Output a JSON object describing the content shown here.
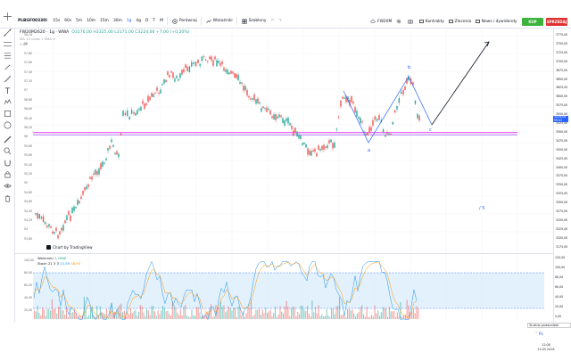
{
  "toolbar": {
    "symbol": "PLBGF00330I",
    "intervals": [
      "15s",
      "60s",
      "5m",
      "10m",
      "15m",
      "30m",
      "1g",
      "4g",
      "D",
      "T",
      "M"
    ],
    "active_interval": "1g",
    "compare_label": "Porównaj",
    "indicators_label": "Wskaźniki",
    "templates_label": "Szablony",
    "instrument_label": "FW20M",
    "contracts_label": "Kontrakty",
    "orders_label": "Zlecenia",
    "news_label": "News i dywidendy",
    "buy_label": "KUP",
    "sell_label": "SPRZEDAJ"
  },
  "legend": {
    "title": "FW20M2620 · 1g · WWA",
    "ohlc": "O3176,00  H3325,00  L3171,00  C3224,00  +7,00 (+0,20%)",
    "ma": "MA 13 close 1 SMA 9",
    "extra": "2,89"
  },
  "oscillator": {
    "volume_label": "Wolumen",
    "volume_value": "1,786K",
    "stoch_label": "Stoch 21 3 3",
    "stoch_k": "23,59",
    "stoch_d": "58,93"
  },
  "tv_logo": "Chart by TradingView",
  "wave_labels": {
    "a": "a",
    "b": "b",
    "c": "c",
    "five": "/ 5"
  },
  "price_axis": [
    "3775,00",
    "3750,00",
    "3725,00",
    "3700,00",
    "3675,00",
    "3650,00",
    "3625,00",
    "3600,00",
    "3575,00",
    "3550,00",
    "3525,00",
    "3500,00",
    "3475,00",
    "3450,00",
    "3425,00",
    "3400,00",
    "3375,00",
    "3350,00",
    "3325,00",
    "3300,00",
    "3275,00",
    "3250,00",
    "3225,00",
    "3200,00",
    "3175,00"
  ],
  "last_price": "3224,00",
  "last_price_sub": "59:41",
  "left_scale": [
    "58,24",
    "58",
    "57,80",
    "57,60",
    "57,40",
    "57,20",
    "57",
    "56,80",
    "56,60",
    "56,40",
    "56,20",
    "56",
    "55,80",
    "55,60",
    "55,40",
    "55,20",
    "55",
    "54,80",
    "54,60",
    "54,40",
    "54,20",
    "54",
    "53,80"
  ],
  "osc_axis": [
    "120,00",
    "100,00",
    "80,00",
    "60,00",
    "40,00",
    "20,00",
    "0,00"
  ],
  "osc_left": [
    "100,00",
    "80,00",
    "60,00",
    "40,00",
    "20,00"
  ],
  "tray": {
    "notification": "Ta okno przesunięte",
    "lang": "PL",
    "time": "12:08",
    "date": "15.05.2026"
  },
  "colors": {
    "up": "#26a69a",
    "down": "#ef5350",
    "support": "#e040fb",
    "wave": "#2962ff",
    "stoch_k": "#2196f3",
    "stoch_d": "#ff9800",
    "osc_band": "#dbeefb"
  }
}
